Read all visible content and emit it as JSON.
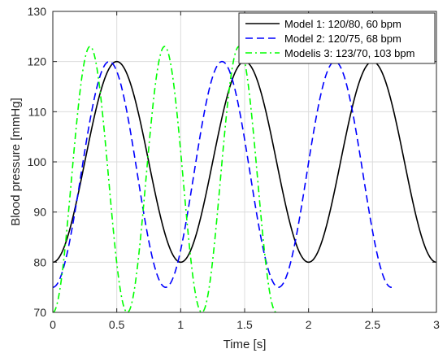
{
  "chart_data": {
    "type": "line",
    "title": "",
    "xlabel": "Time [s]",
    "ylabel": "Blood pressure [mmHg]",
    "xlim": [
      0,
      3
    ],
    "ylim": [
      70,
      130
    ],
    "xticks": [
      0,
      0.5,
      1,
      1.5,
      2,
      2.5,
      3
    ],
    "xtick_labels": [
      "0",
      "0.5",
      "1",
      "1.5",
      "2",
      "2.5",
      "3"
    ],
    "yticks": [
      70,
      80,
      90,
      100,
      110,
      120,
      130
    ],
    "ytick_labels": [
      "70",
      "80",
      "90",
      "100",
      "110",
      "120",
      "130"
    ],
    "grid": true,
    "legend_position": "top-right",
    "series": [
      {
        "name": "Model 1: 120/80, 60 bpm",
        "color": "#000000",
        "style": "solid",
        "x_start": 0,
        "x_end": 3,
        "min": 80,
        "max": 120,
        "heart_rate_bpm": 60
      },
      {
        "name": "Model 2: 120/75, 68 bpm",
        "color": "#0000ff",
        "style": "dashed",
        "x_start": 0,
        "x_end": 2.65,
        "min": 75,
        "max": 120,
        "heart_rate_bpm": 68
      },
      {
        "name": "Modelis 3: 123/70, 103 bpm",
        "color": "#00ff00",
        "style": "dashdot",
        "x_start": 0,
        "x_end": 1.75,
        "min": 70,
        "max": 123,
        "heart_rate_bpm": 103
      }
    ]
  }
}
